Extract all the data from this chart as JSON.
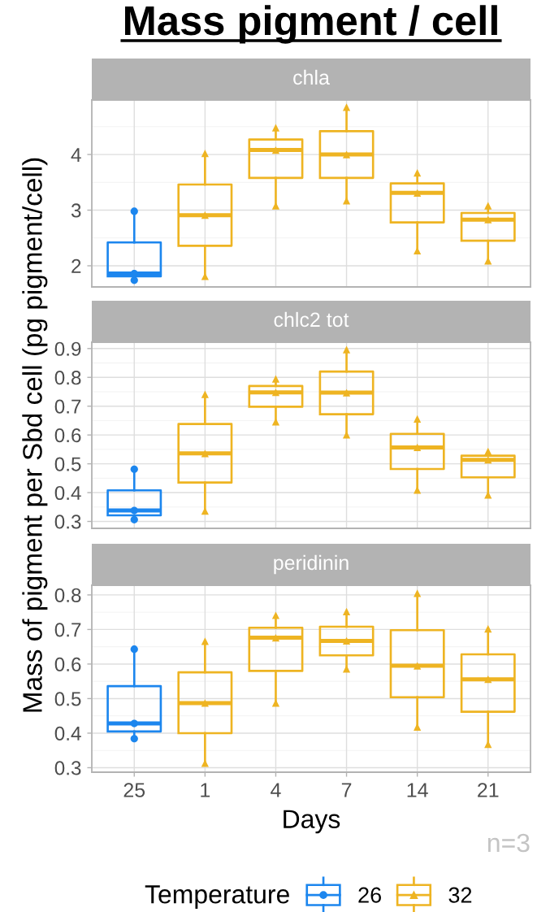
{
  "chart_data": [
    {
      "type": "box",
      "title": "Mass pigment / cell",
      "subtitle": "chla",
      "legend": "bottom",
      "legend_title": "Temperature",
      "categories": [
        "25",
        "1",
        "4",
        "7",
        "14",
        "21"
      ],
      "ylim": [
        1.62,
        4.98
      ],
      "yticks": [
        2,
        3,
        4
      ],
      "grid": true,
      "tick_labels": "y",
      "series": [
        {
          "name": "26",
          "type": "box",
          "color": "#1c86ee",
          "marker": "circle",
          "boxes": [
            {
              "low": 1.74,
              "q1": 1.81,
              "median": 1.86,
              "q3": 2.42,
              "high": 2.98
            },
            null,
            null,
            null,
            null,
            null
          ]
        },
        {
          "name": "32",
          "type": "box",
          "color": "#eeb422",
          "marker": "triangle",
          "boxes": [
            null,
            {
              "low": 1.81,
              "q1": 2.36,
              "median": 2.91,
              "q3": 3.46,
              "high": 4.02
            },
            {
              "low": 3.08,
              "q1": 3.58,
              "median": 4.08,
              "q3": 4.27,
              "high": 4.48
            },
            {
              "low": 3.17,
              "q1": 3.58,
              "median": 4.0,
              "q3": 4.42,
              "high": 4.85
            },
            {
              "low": 2.27,
              "q1": 2.78,
              "median": 3.31,
              "q3": 3.48,
              "high": 3.67
            },
            {
              "low": 2.09,
              "q1": 2.45,
              "median": 2.83,
              "q3": 2.95,
              "high": 3.08
            }
          ]
        },
        {
          "type": "scatter",
          "color": "#1c86ee",
          "marker": "circle",
          "x": [
            "25",
            "25",
            "25"
          ],
          "values": [
            1.74,
            1.86,
            2.98
          ]
        },
        {
          "type": "scatter",
          "color": "#eeb422",
          "marker": "triangle",
          "x": [
            "1",
            "1",
            "1",
            "4",
            "4",
            "4",
            "7",
            "7",
            "7",
            "14",
            "14",
            "14",
            "21",
            "21",
            "21"
          ],
          "values": [
            1.81,
            2.91,
            4.02,
            3.08,
            4.08,
            4.48,
            3.17,
            4.0,
            4.85,
            2.27,
            3.31,
            3.67,
            2.09,
            2.83,
            3.08
          ]
        }
      ]
    },
    {
      "type": "box",
      "subtitle": "chlc2 tot",
      "ylabel": "Mass of pigment per Sbd cell (pg pigment/cell)",
      "categories": [
        "25",
        "1",
        "4",
        "7",
        "14",
        "21"
      ],
      "ylim": [
        0.276,
        0.922
      ],
      "yticks": [
        0.3,
        0.4,
        0.5,
        0.6,
        0.7,
        0.8,
        0.9
      ],
      "grid": true,
      "tick_labels": "y",
      "series": [
        {
          "name": "26",
          "type": "box",
          "color": "#1c86ee",
          "boxes": [
            {
              "low": 0.306,
              "q1": 0.321,
              "median": 0.338,
              "q3": 0.408,
              "high": 0.481
            },
            null,
            null,
            null,
            null,
            null
          ]
        },
        {
          "name": "32",
          "type": "box",
          "color": "#eeb422",
          "boxes": [
            null,
            {
              "low": 0.336,
              "q1": 0.435,
              "median": 0.536,
              "q3": 0.638,
              "high": 0.741
            },
            {
              "low": 0.646,
              "q1": 0.698,
              "median": 0.748,
              "q3": 0.77,
              "high": 0.795
            },
            {
              "low": 0.601,
              "q1": 0.672,
              "median": 0.747,
              "q3": 0.82,
              "high": 0.896
            },
            {
              "low": 0.409,
              "q1": 0.482,
              "median": 0.557,
              "q3": 0.604,
              "high": 0.656
            },
            {
              "low": 0.392,
              "q1": 0.453,
              "median": 0.514,
              "q3": 0.528,
              "high": 0.543
            }
          ]
        },
        {
          "type": "scatter",
          "color": "#1c86ee",
          "marker": "circle",
          "x": [
            "25",
            "25",
            "25"
          ],
          "values": [
            0.306,
            0.338,
            0.481
          ]
        },
        {
          "type": "scatter",
          "color": "#eeb422",
          "marker": "triangle",
          "x": [
            "1",
            "1",
            "1",
            "4",
            "4",
            "4",
            "7",
            "7",
            "7",
            "14",
            "14",
            "14",
            "21",
            "21",
            "21"
          ],
          "values": [
            0.336,
            0.536,
            0.741,
            0.646,
            0.748,
            0.795,
            0.601,
            0.747,
            0.896,
            0.409,
            0.557,
            0.656,
            0.392,
            0.514,
            0.543
          ]
        }
      ]
    },
    {
      "type": "box",
      "subtitle": "peridinin",
      "xlabel": "Days",
      "annotations": [
        "n=3"
      ],
      "categories": [
        "25",
        "1",
        "4",
        "7",
        "14",
        "21"
      ],
      "ylim": [
        0.287,
        0.828
      ],
      "yticks": [
        0.3,
        0.4,
        0.5,
        0.6,
        0.7,
        0.8
      ],
      "grid": true,
      "series": [
        {
          "name": "26",
          "type": "box",
          "color": "#1c86ee",
          "boxes": [
            {
              "low": 0.384,
              "q1": 0.405,
              "median": 0.428,
              "q3": 0.536,
              "high": 0.643
            },
            null,
            null,
            null,
            null,
            null
          ]
        },
        {
          "name": "32",
          "type": "box",
          "color": "#eeb422",
          "boxes": [
            null,
            {
              "low": 0.313,
              "q1": 0.4,
              "median": 0.487,
              "q3": 0.576,
              "high": 0.666
            },
            {
              "low": 0.487,
              "q1": 0.58,
              "median": 0.676,
              "q3": 0.705,
              "high": 0.741
            },
            {
              "low": 0.586,
              "q1": 0.625,
              "median": 0.667,
              "q3": 0.708,
              "high": 0.752
            },
            {
              "low": 0.418,
              "q1": 0.504,
              "median": 0.595,
              "q3": 0.698,
              "high": 0.805
            },
            {
              "low": 0.368,
              "q1": 0.462,
              "median": 0.556,
              "q3": 0.628,
              "high": 0.702
            }
          ]
        },
        {
          "type": "scatter",
          "color": "#1c86ee",
          "marker": "circle",
          "x": [
            "25",
            "25",
            "25"
          ],
          "values": [
            0.384,
            0.428,
            0.643
          ]
        },
        {
          "type": "scatter",
          "color": "#eeb422",
          "marker": "triangle",
          "x": [
            "1",
            "1",
            "1",
            "4",
            "4",
            "4",
            "7",
            "7",
            "7",
            "14",
            "14",
            "14",
            "21",
            "21",
            "21"
          ],
          "values": [
            0.313,
            0.487,
            0.666,
            0.487,
            0.676,
            0.741,
            0.586,
            0.667,
            0.752,
            0.418,
            0.595,
            0.805,
            0.368,
            0.556,
            0.702
          ]
        }
      ]
    }
  ]
}
